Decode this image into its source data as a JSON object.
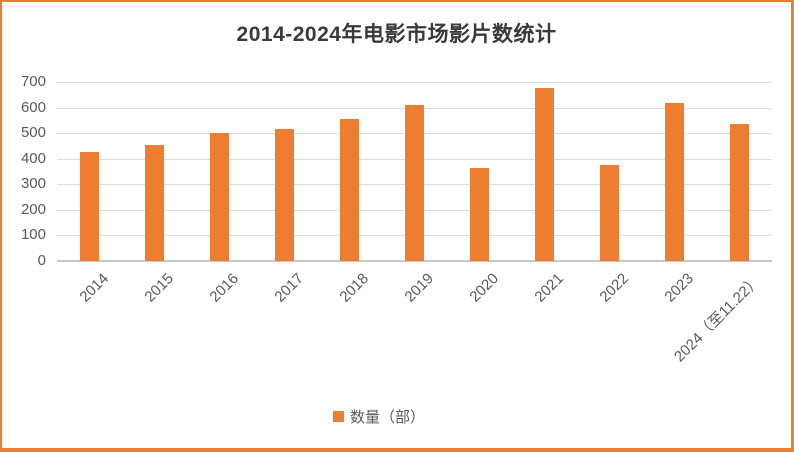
{
  "chart_data": {
    "type": "bar",
    "title": "2014-2024年电影市场影片数统计",
    "categories": [
      "2014",
      "2015",
      "2016",
      "2017",
      "2018",
      "2019",
      "2020",
      "2021",
      "2022",
      "2023",
      "2024（至11.22）"
    ],
    "values": [
      425,
      455,
      501,
      517,
      557,
      611,
      364,
      677,
      376,
      616,
      534
    ],
    "series_name": "数量（部）",
    "legend_label": "数量（部）",
    "legend_position": "bottom",
    "grid": true,
    "ylim": [
      0,
      700
    ],
    "ytick_step": 100,
    "yticks": [
      0,
      100,
      200,
      300,
      400,
      500,
      600,
      700
    ],
    "xlabel": "",
    "ylabel": ""
  },
  "colors": {
    "bar": "#ED7D31",
    "frame_border": "#ED7D31",
    "gridline": "#DCDCDC",
    "axis_line": "#C6C6C6",
    "axis_text": "#595959",
    "title_text": "#3A3A3A"
  }
}
